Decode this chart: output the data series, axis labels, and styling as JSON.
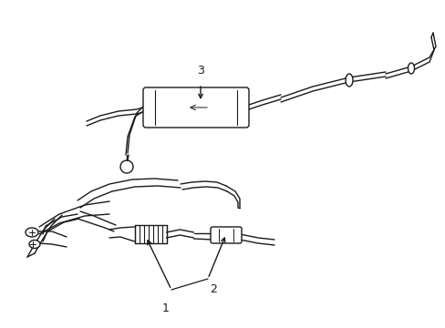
{
  "bg_color": "#ffffff",
  "line_color": "#1a1a1a",
  "lw": 1.0,
  "fig_width": 4.89,
  "fig_height": 3.6,
  "dpi": 100,
  "xlim": [
    0,
    489
  ],
  "ylim": [
    0,
    360
  ]
}
